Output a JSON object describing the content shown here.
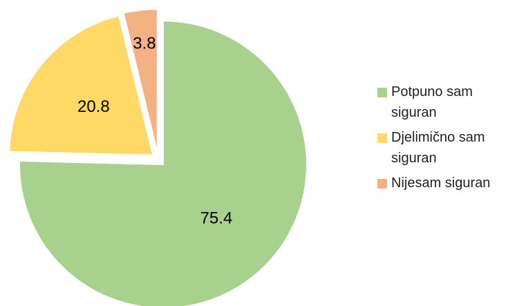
{
  "chart_data": {
    "type": "pie",
    "categories": [
      "Potpuno sam siguran",
      "Djelimično sam siguran",
      "Nijesam siguran"
    ],
    "values": [
      75.4,
      20.8,
      3.8
    ],
    "colors": [
      "#a9d18e",
      "#ffd966",
      "#f4b183"
    ],
    "legend": "right"
  }
}
